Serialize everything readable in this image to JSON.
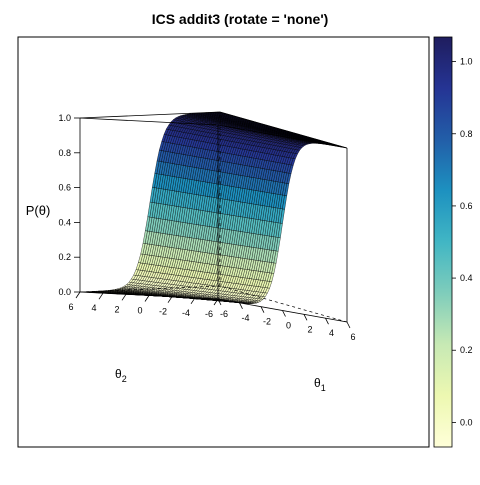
{
  "chart_data": {
    "type": "surface",
    "title": "ICS addit3 (rotate = 'none')",
    "zlabel": "P(θ)",
    "xlabel": {
      "base": "θ",
      "sub": "1"
    },
    "ylabel": {
      "base": "θ",
      "sub": "2"
    },
    "x_ticks": [
      "-6",
      "-4",
      "-2",
      "0",
      "2",
      "4",
      "6"
    ],
    "y_ticks": [
      "6",
      "4",
      "2",
      "0",
      "-2",
      "-4",
      "-6"
    ],
    "z_ticks": [
      "0.0",
      "0.2",
      "0.4",
      "0.6",
      "0.8",
      "1.0"
    ],
    "x_range": [
      -6,
      6
    ],
    "y_range": [
      -6,
      6
    ],
    "z_range": [
      0,
      1
    ],
    "surface": {
      "function": "logistic",
      "slope_theta1": 1.7,
      "slope_theta2": 0.0,
      "grid": 60
    },
    "colorbar": {
      "ticks": [
        "0.0",
        "0.2",
        "0.4",
        "0.6",
        "0.8",
        "1.0"
      ],
      "range": [
        0,
        1
      ],
      "colors": [
        "#ffffd9",
        "#edf8b1",
        "#c7e9b4",
        "#7fcdbb",
        "#41b6c4",
        "#1d91c0",
        "#225ea8",
        "#253494",
        "#1f1d5e"
      ]
    }
  }
}
